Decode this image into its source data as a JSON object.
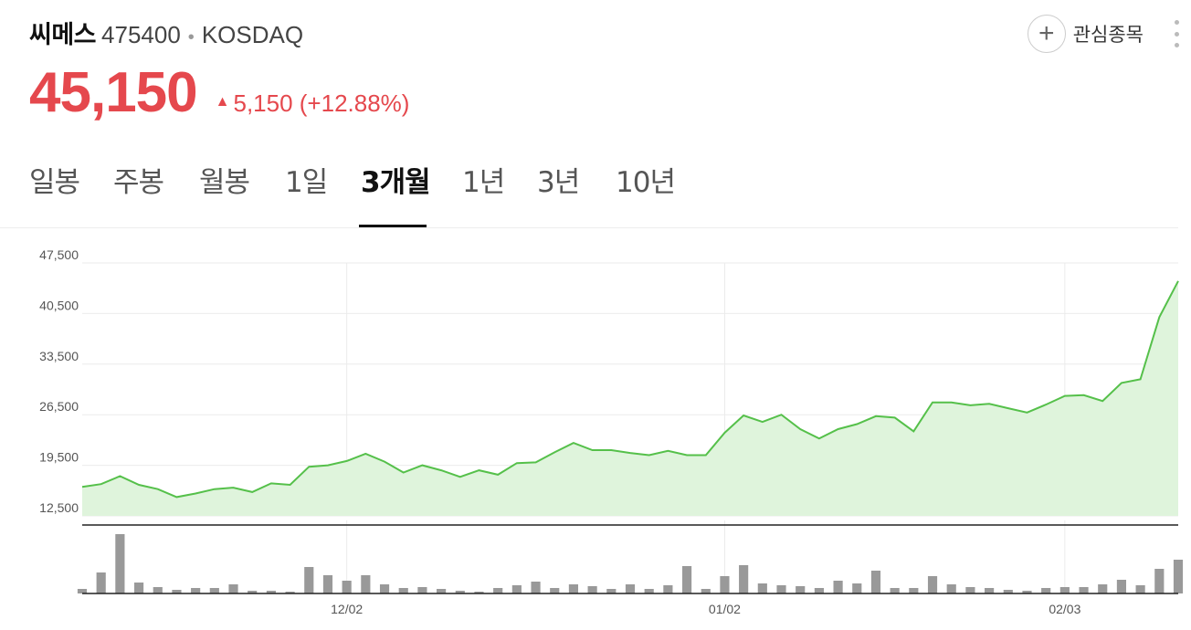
{
  "stock": {
    "name": "씨메스",
    "code": "475400",
    "separator": "•",
    "market": "KOSDAQ",
    "price": "45,150",
    "change_arrow": "▲",
    "change_text": "5,150 (+12.88%)"
  },
  "watch": {
    "icon": "plus-icon",
    "label": "관심종목"
  },
  "tabs": [
    {
      "label": "일봉",
      "active": false
    },
    {
      "label": "주봉",
      "active": false
    },
    {
      "label": "월봉",
      "active": false
    },
    {
      "label": "1일",
      "active": false
    },
    {
      "label": "3개월",
      "active": true
    },
    {
      "label": "1년",
      "active": false
    },
    {
      "label": "3년",
      "active": false
    },
    {
      "label": "10년",
      "active": false
    }
  ],
  "colors": {
    "up": "#e5484d",
    "line": "#55c04a",
    "area": "#dff4dc",
    "volume": "#999999"
  },
  "chart_data": {
    "type": "area",
    "y_ticks": [
      "47,500",
      "40,500",
      "33,500",
      "26,500",
      "19,500",
      "12,500"
    ],
    "y_tick_values": [
      47500,
      40500,
      33500,
      26500,
      19500,
      12500
    ],
    "ylim": [
      12500,
      47500
    ],
    "x_ticks": [
      "12/02",
      "01/02",
      "02/03"
    ],
    "x_tick_index": [
      14,
      34,
      52
    ],
    "price": [
      16500,
      16900,
      18000,
      16800,
      16200,
      15100,
      15600,
      16200,
      16400,
      15800,
      17000,
      16800,
      19300,
      19500,
      20100,
      21100,
      20000,
      18500,
      19500,
      18800,
      17900,
      18800,
      18200,
      19800,
      19900,
      21300,
      22600,
      21600,
      21600,
      21200,
      20900,
      21500,
      20900,
      20900,
      24000,
      26400,
      25500,
      26500,
      24500,
      23200,
      24500,
      25200,
      26300,
      26100,
      24200,
      28200,
      28200,
      27800,
      28000,
      27400,
      26800,
      27900,
      29100,
      29200,
      28400,
      30900,
      31400,
      40000,
      45000
    ],
    "volume": [
      5,
      23,
      65,
      12,
      7,
      4,
      6,
      6,
      10,
      3,
      3,
      2,
      29,
      20,
      14,
      20,
      10,
      6,
      7,
      5,
      3,
      2,
      6,
      9,
      13,
      6,
      10,
      8,
      5,
      10,
      5,
      9,
      30,
      5,
      19,
      31,
      11,
      9,
      8,
      6,
      14,
      11,
      25,
      6,
      6,
      19,
      10,
      7,
      6,
      4,
      3,
      6,
      7,
      7,
      10,
      15,
      9,
      27,
      37
    ]
  }
}
